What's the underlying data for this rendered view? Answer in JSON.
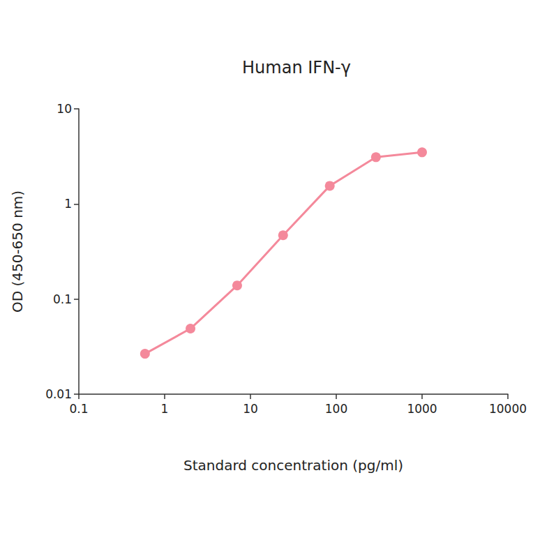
{
  "chart_data": {
    "type": "line",
    "title": "Human IFN-γ",
    "x_label": "Standard concentration (pg/ml)",
    "y_label": "OD (450-650 nm)",
    "x": [
      0.59,
      2.0,
      7.0,
      24,
      84,
      290,
      1000
    ],
    "values": [
      0.0266,
      0.0489,
      0.139,
      0.468,
      1.55,
      3.1,
      3.49
    ],
    "color": "#f4899b",
    "marker": "circle",
    "line_style": "solid",
    "log": true,
    "grid": false,
    "xlim": [
      0.1,
      10000
    ],
    "xticks": [
      0.1,
      1,
      10,
      100,
      1000,
      10000
    ],
    "ylim": [
      0.01,
      10
    ],
    "yticks": [
      0.01,
      0.1,
      1,
      10
    ]
  }
}
